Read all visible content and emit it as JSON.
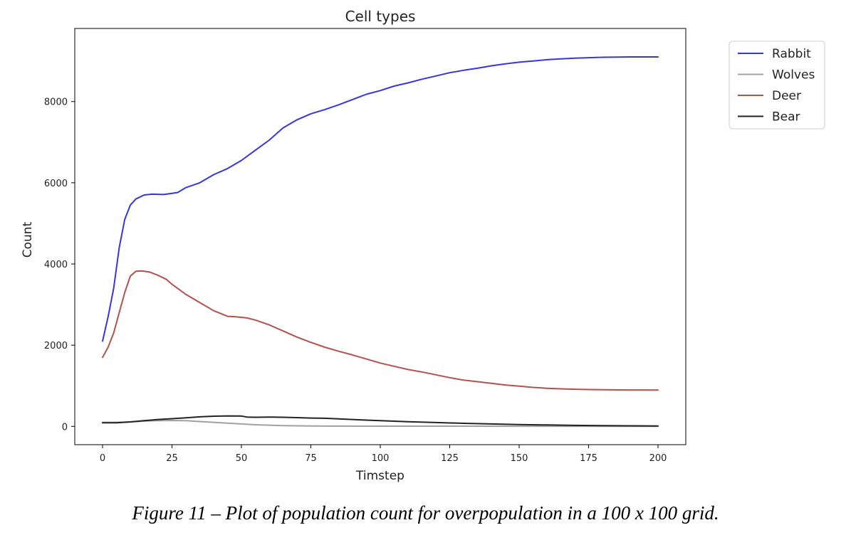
{
  "caption": "Figure 11 – Plot of population count for overpopulation in a 100 x 100 grid.",
  "chart_data": {
    "type": "line",
    "title": "Cell types",
    "xlabel": "Timstep",
    "ylabel": "Count",
    "xlim": [
      -10,
      210
    ],
    "ylim": [
      -450,
      9800
    ],
    "xticks": [
      0,
      25,
      50,
      75,
      100,
      125,
      150,
      175,
      200
    ],
    "yticks": [
      0,
      2000,
      4000,
      6000,
      8000
    ],
    "grid": false,
    "legend": "upper right, outside plot area",
    "series": [
      {
        "name": "Rabbit",
        "color": "#3535e8",
        "points": [
          [
            0,
            2100
          ],
          [
            2,
            2700
          ],
          [
            4,
            3400
          ],
          [
            6,
            4400
          ],
          [
            8,
            5100
          ],
          [
            10,
            5450
          ],
          [
            12,
            5600
          ],
          [
            15,
            5700
          ],
          [
            18,
            5720
          ],
          [
            22,
            5710
          ],
          [
            25,
            5740
          ],
          [
            27,
            5760
          ],
          [
            30,
            5880
          ],
          [
            35,
            6000
          ],
          [
            40,
            6200
          ],
          [
            45,
            6350
          ],
          [
            50,
            6550
          ],
          [
            55,
            6800
          ],
          [
            60,
            7050
          ],
          [
            65,
            7350
          ],
          [
            70,
            7550
          ],
          [
            75,
            7700
          ],
          [
            80,
            7800
          ],
          [
            85,
            7920
          ],
          [
            90,
            8050
          ],
          [
            95,
            8180
          ],
          [
            100,
            8270
          ],
          [
            105,
            8380
          ],
          [
            110,
            8460
          ],
          [
            115,
            8550
          ],
          [
            120,
            8630
          ],
          [
            125,
            8710
          ],
          [
            130,
            8770
          ],
          [
            135,
            8820
          ],
          [
            140,
            8880
          ],
          [
            145,
            8930
          ],
          [
            150,
            8970
          ],
          [
            155,
            9000
          ],
          [
            160,
            9030
          ],
          [
            165,
            9050
          ],
          [
            170,
            9070
          ],
          [
            175,
            9080
          ],
          [
            180,
            9090
          ],
          [
            185,
            9095
          ],
          [
            190,
            9100
          ],
          [
            195,
            9100
          ],
          [
            200,
            9100
          ]
        ]
      },
      {
        "name": "Wolves",
        "color": "#a0a0a0",
        "points": [
          [
            0,
            100
          ],
          [
            5,
            100
          ],
          [
            10,
            110
          ],
          [
            15,
            130
          ],
          [
            20,
            140
          ],
          [
            25,
            145
          ],
          [
            30,
            140
          ],
          [
            35,
            120
          ],
          [
            40,
            100
          ],
          [
            45,
            80
          ],
          [
            50,
            60
          ],
          [
            55,
            40
          ],
          [
            60,
            30
          ],
          [
            65,
            20
          ],
          [
            70,
            15
          ],
          [
            75,
            10
          ],
          [
            80,
            8
          ],
          [
            100,
            5
          ],
          [
            150,
            3
          ],
          [
            200,
            0
          ]
        ]
      },
      {
        "name": "Deer",
        "color": "#b5504d",
        "points": [
          [
            0,
            1700
          ],
          [
            2,
            1950
          ],
          [
            4,
            2300
          ],
          [
            6,
            2800
          ],
          [
            8,
            3300
          ],
          [
            10,
            3700
          ],
          [
            12,
            3820
          ],
          [
            14,
            3830
          ],
          [
            17,
            3800
          ],
          [
            20,
            3720
          ],
          [
            23,
            3620
          ],
          [
            25,
            3500
          ],
          [
            28,
            3350
          ],
          [
            30,
            3250
          ],
          [
            35,
            3050
          ],
          [
            40,
            2850
          ],
          [
            45,
            2710
          ],
          [
            48,
            2700
          ],
          [
            52,
            2670
          ],
          [
            55,
            2620
          ],
          [
            60,
            2500
          ],
          [
            65,
            2350
          ],
          [
            70,
            2200
          ],
          [
            75,
            2070
          ],
          [
            80,
            1950
          ],
          [
            85,
            1850
          ],
          [
            90,
            1760
          ],
          [
            95,
            1660
          ],
          [
            100,
            1560
          ],
          [
            105,
            1480
          ],
          [
            110,
            1400
          ],
          [
            115,
            1340
          ],
          [
            120,
            1270
          ],
          [
            125,
            1200
          ],
          [
            130,
            1140
          ],
          [
            135,
            1100
          ],
          [
            140,
            1060
          ],
          [
            145,
            1020
          ],
          [
            150,
            990
          ],
          [
            155,
            960
          ],
          [
            160,
            940
          ],
          [
            165,
            925
          ],
          [
            170,
            915
          ],
          [
            175,
            908
          ],
          [
            180,
            902
          ],
          [
            185,
            900
          ],
          [
            190,
            898
          ],
          [
            195,
            897
          ],
          [
            200,
            895
          ]
        ]
      },
      {
        "name": "Bear",
        "color": "#222222",
        "points": [
          [
            0,
            90
          ],
          [
            5,
            90
          ],
          [
            10,
            110
          ],
          [
            15,
            140
          ],
          [
            20,
            170
          ],
          [
            25,
            190
          ],
          [
            30,
            210
          ],
          [
            35,
            235
          ],
          [
            40,
            250
          ],
          [
            45,
            258
          ],
          [
            50,
            255
          ],
          [
            52,
            230
          ],
          [
            55,
            225
          ],
          [
            60,
            230
          ],
          [
            65,
            225
          ],
          [
            70,
            215
          ],
          [
            75,
            205
          ],
          [
            80,
            200
          ],
          [
            85,
            185
          ],
          [
            90,
            170
          ],
          [
            95,
            155
          ],
          [
            100,
            140
          ],
          [
            110,
            115
          ],
          [
            120,
            95
          ],
          [
            130,
            75
          ],
          [
            140,
            60
          ],
          [
            150,
            45
          ],
          [
            160,
            35
          ],
          [
            170,
            25
          ],
          [
            180,
            20
          ],
          [
            190,
            15
          ],
          [
            200,
            10
          ]
        ]
      }
    ]
  }
}
